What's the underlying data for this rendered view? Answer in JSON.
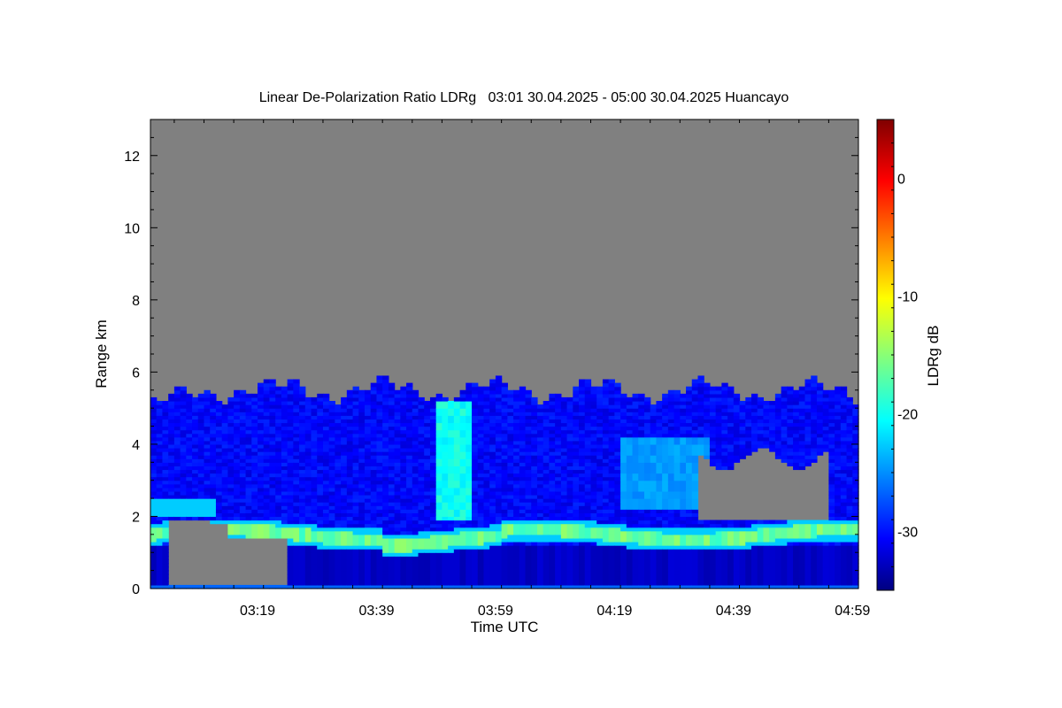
{
  "chart_data": {
    "type": "heatmap",
    "title": "Linear De-Polarization Ratio LDRg   03:01 30.04.2025 - 05:00 30.04.2025 Huancayo",
    "xlabel": "Time UTC",
    "ylabel": "Range km",
    "colorbar_label": "LDRg dB",
    "x_ticks": [
      "03:19",
      "03:39",
      "03:59",
      "04:19",
      "04:39",
      "04:59"
    ],
    "x_tick_minutes": [
      19,
      39,
      59,
      79,
      99,
      119
    ],
    "xlim_minutes": [
      1,
      120
    ],
    "y_ticks": [
      0,
      2,
      4,
      6,
      8,
      10,
      12
    ],
    "ylim": [
      0,
      13
    ],
    "colorbar_ticks": [
      0,
      -10,
      -20,
      -30
    ],
    "colorbar_range": [
      -35,
      5
    ],
    "colormap": "jet",
    "no_data_color": "#808080",
    "features": {
      "cloud_top_km": 5.5,
      "aerosol_layer_top_km": 2.5,
      "depolarization_band_km": 1.5,
      "typical_background_dB": -30,
      "band_peak_dB": -14,
      "plume_time_minutes": 52,
      "plume_top_km": 5.2,
      "plume_dB": -21
    }
  }
}
